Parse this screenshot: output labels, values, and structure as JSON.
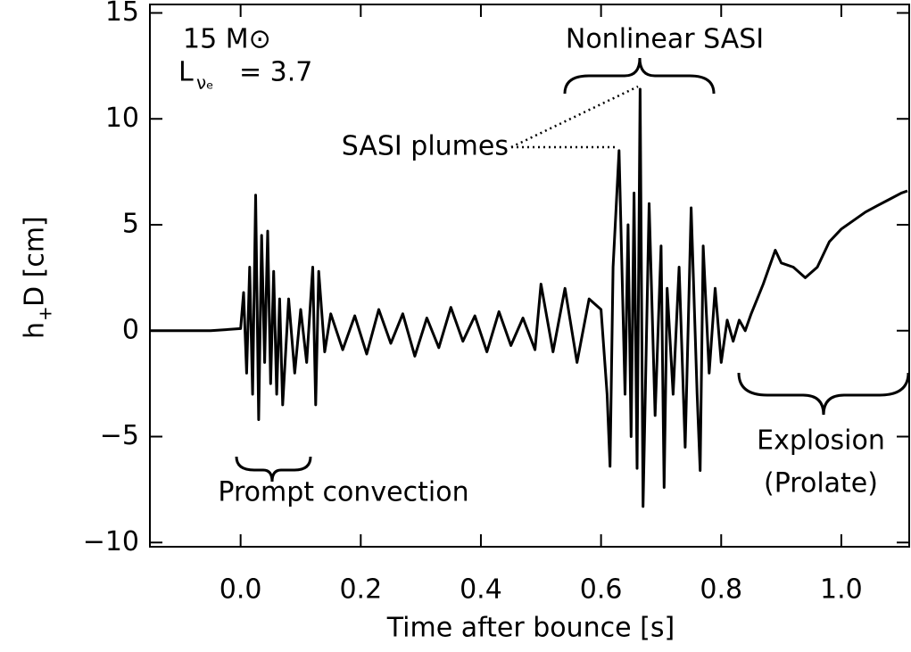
{
  "chart_data": {
    "type": "line",
    "color": "#000000",
    "xlabel": "Time after bounce [s]",
    "ylabel": {
      "main": "h",
      "sub": "+",
      "rest": "D [cm]"
    },
    "annotations": {
      "mass": "15 M⊙",
      "lum_main": "L",
      "lum_sub": "νₑ",
      "lum_rest": "= 3.7",
      "nonlinear": "Nonlinear SASI",
      "plumes": "SASI plumes",
      "prompt": "Prompt convection",
      "explosion": "Explosion",
      "prolate": "(Prolate)"
    },
    "xlim": [
      -0.151,
      1.113
    ],
    "ylim": [
      -10.2,
      15.4
    ],
    "xticks": [
      {
        "value": 0,
        "label": "0.0"
      },
      0.2,
      0.4,
      0.6,
      0.8,
      {
        "value": 1,
        "label": "1.0"
      }
    ],
    "yticks": [
      {
        "value": -10,
        "label": "−10"
      },
      {
        "value": -5,
        "label": "−5"
      },
      0,
      5,
      10,
      15
    ],
    "x": [
      -0.151,
      -0.1,
      -0.05,
      0.0,
      0.005,
      0.01,
      0.015,
      0.02,
      0.025,
      0.03,
      0.035,
      0.04,
      0.045,
      0.05,
      0.055,
      0.06,
      0.065,
      0.07,
      0.08,
      0.09,
      0.1,
      0.11,
      0.12,
      0.125,
      0.13,
      0.14,
      0.15,
      0.17,
      0.19,
      0.21,
      0.23,
      0.25,
      0.27,
      0.29,
      0.31,
      0.33,
      0.35,
      0.37,
      0.39,
      0.41,
      0.43,
      0.45,
      0.47,
      0.49,
      0.5,
      0.52,
      0.54,
      0.56,
      0.58,
      0.6,
      0.61,
      0.615,
      0.62,
      0.63,
      0.64,
      0.645,
      0.65,
      0.655,
      0.66,
      0.665,
      0.67,
      0.68,
      0.69,
      0.7,
      0.705,
      0.71,
      0.72,
      0.73,
      0.74,
      0.75,
      0.76,
      0.765,
      0.77,
      0.78,
      0.79,
      0.8,
      0.81,
      0.82,
      0.83,
      0.84,
      0.85,
      0.86,
      0.87,
      0.88,
      0.89,
      0.9,
      0.92,
      0.94,
      0.96,
      0.98,
      1.0,
      1.02,
      1.04,
      1.06,
      1.08,
      1.1,
      1.11
    ],
    "values": [
      0,
      0,
      0,
      0.1,
      1.8,
      -2.0,
      3.0,
      -3.0,
      6.4,
      -4.2,
      4.5,
      -1.5,
      4.7,
      -2.5,
      2.8,
      -3.0,
      1.5,
      -3.5,
      1.5,
      -2.0,
      1.0,
      -1.5,
      3.0,
      -3.5,
      2.8,
      -1.0,
      0.8,
      -0.9,
      0.7,
      -1.1,
      1.0,
      -0.6,
      0.8,
      -1.2,
      0.6,
      -0.8,
      1.1,
      -0.5,
      0.7,
      -1.0,
      0.9,
      -0.7,
      0.6,
      -0.9,
      2.2,
      -1.0,
      2.0,
      -1.5,
      1.5,
      1.0,
      -3.0,
      -6.4,
      3.0,
      8.5,
      -3.0,
      5.0,
      -5.0,
      6.5,
      -6.5,
      11.4,
      -8.3,
      6.0,
      -4.0,
      4.0,
      -7.4,
      2.0,
      -3.0,
      3.0,
      -5.5,
      5.8,
      -3.0,
      -6.6,
      4.0,
      -2.0,
      2.0,
      -1.5,
      0.5,
      -0.5,
      0.5,
      0.0,
      0.8,
      1.5,
      2.2,
      3.0,
      3.8,
      3.2,
      3.0,
      2.5,
      3.0,
      4.2,
      4.8,
      5.2,
      5.6,
      5.9,
      6.2,
      6.5,
      6.6
    ]
  }
}
